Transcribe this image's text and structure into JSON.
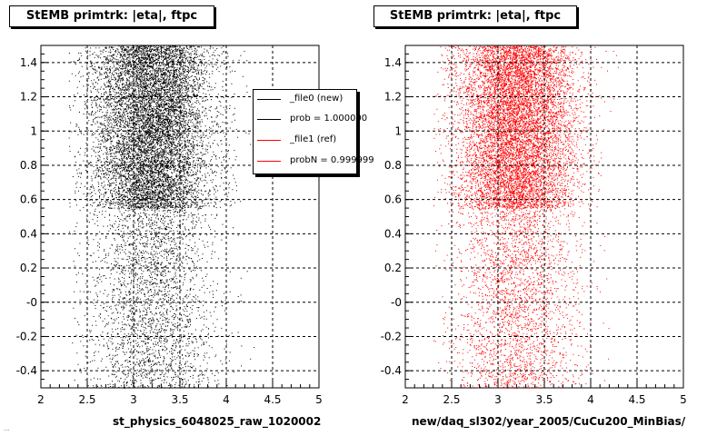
{
  "panels": [
    {
      "title": "StEMB primtrk: |eta|, ftpc",
      "xlabel": "st_physics_6048025_raw_1020002",
      "color": "#000000"
    },
    {
      "title": "StEMB primtrk: |eta|, ftpc",
      "xlabel": "new/daq_sl302/year_2005/CuCu200_MinBias/",
      "color": "#ff0000"
    }
  ],
  "legend": {
    "entries": [
      {
        "label": "_file0 (new)",
        "color": "#000000"
      },
      {
        "label": "prob = 1.000000",
        "color": "#000000"
      },
      {
        "label": "_file1 (ref)",
        "color": "#ff0000"
      },
      {
        "label": "probN = 0.999999",
        "color": "#ff0000"
      }
    ]
  },
  "footer": "...",
  "chart_data": [
    {
      "type": "scatter",
      "title": "StEMB primtrk: |eta|, ftpc",
      "xlabel": "st_physics_6048025_raw_1020002",
      "ylabel": "",
      "xlim": [
        2,
        5
      ],
      "ylim": [
        -0.5,
        1.5
      ],
      "xticks": [
        "2",
        "2.5",
        "3",
        "3.5",
        "4",
        "4.5",
        "5"
      ],
      "yticks": [
        "-0.4",
        "-0.2",
        "-0",
        "0.2",
        "0.4",
        "0.6",
        "0.8",
        "1",
        "1.2",
        "1.4"
      ],
      "grid": true,
      "color": "#000000",
      "density": {
        "x_range": [
          2.3,
          4.3
        ],
        "x_peak": 3.2,
        "dense_band_y": [
          0.55,
          1.5
        ],
        "sparse_band_y": [
          -0.5,
          0.55
        ]
      }
    },
    {
      "type": "scatter",
      "title": "StEMB primtrk: |eta|, ftpc",
      "xlabel": "new/daq_sl302/year_2005/CuCu200_MinBias/",
      "ylabel": "",
      "xlim": [
        2,
        5
      ],
      "ylim": [
        -0.5,
        1.5
      ],
      "xticks": [
        "2",
        "2.5",
        "3",
        "3.5",
        "4",
        "4.5",
        "5"
      ],
      "yticks": [
        "-0.4",
        "-0.2",
        "-0",
        "0.2",
        "0.4",
        "0.6",
        "0.8",
        "1",
        "1.2",
        "1.4"
      ],
      "grid": true,
      "color": "#ff0000",
      "density": {
        "x_range": [
          2.3,
          4.3
        ],
        "x_peak": 3.2,
        "dense_band_y": [
          0.55,
          1.5
        ],
        "sparse_band_y": [
          -0.5,
          0.55
        ]
      }
    }
  ]
}
